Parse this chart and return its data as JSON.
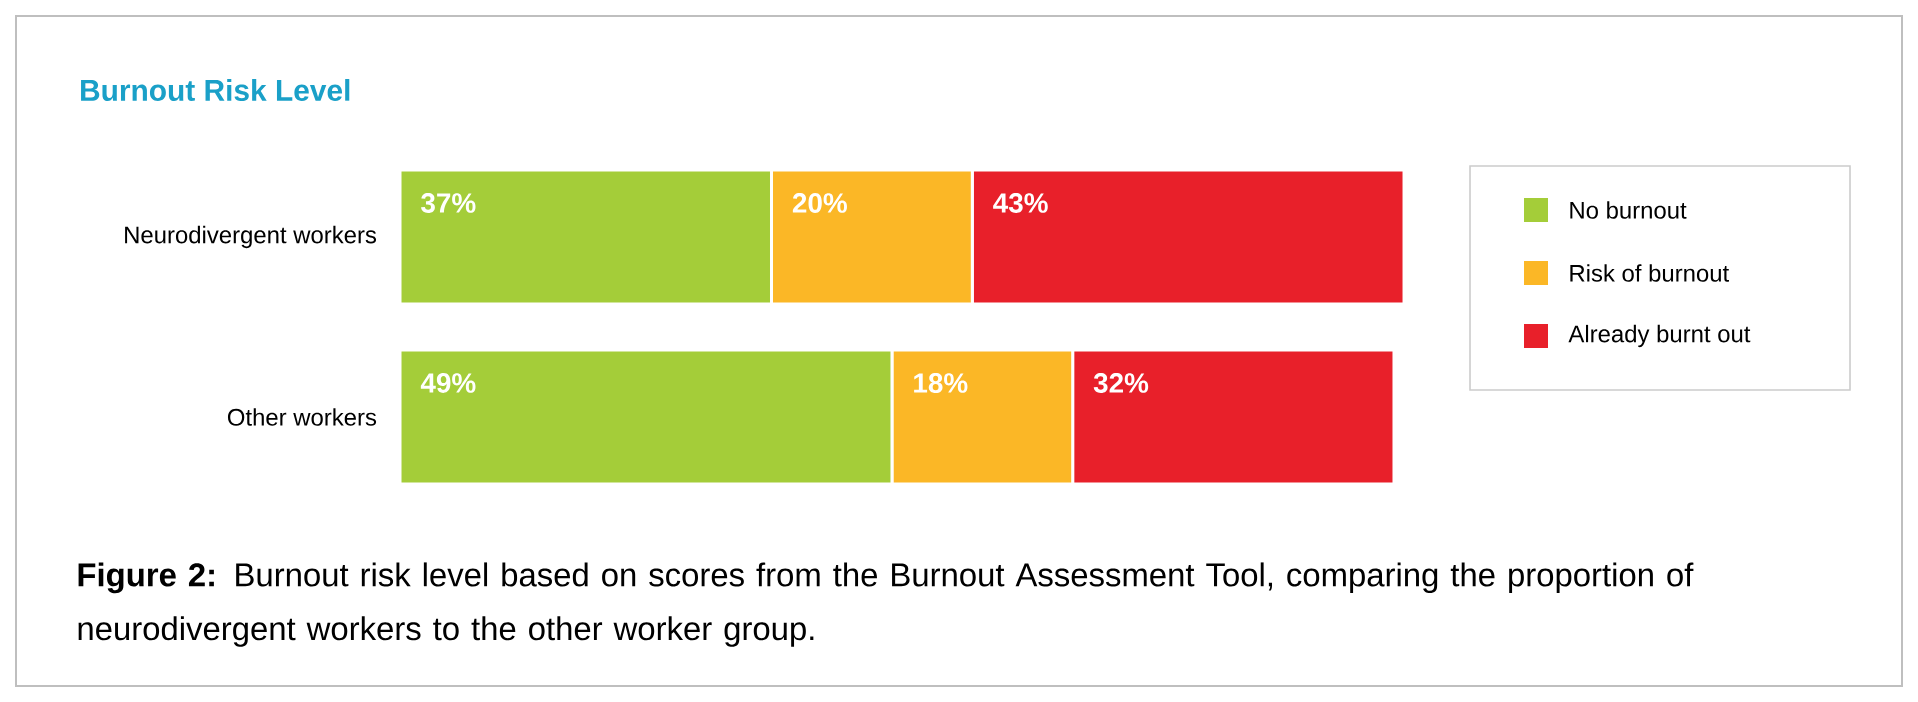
{
  "chart_data": {
    "type": "bar",
    "orientation": "horizontal",
    "stacked": true,
    "title": "Burnout Risk Level",
    "categories": [
      "Neurodivergent workers",
      "Other workers"
    ],
    "series": [
      {
        "name": "No burnout",
        "color": "#a4cd39",
        "values": [
          37,
          49
        ],
        "value_labels": [
          "37%",
          "49%"
        ]
      },
      {
        "name": "Risk of burnout",
        "color": "#fbb726",
        "values": [
          20,
          18
        ],
        "value_labels": [
          "20%",
          "18%"
        ]
      },
      {
        "name": "Already burnt out",
        "color": "#e8202a",
        "values": [
          43,
          32
        ],
        "value_labels": [
          "43%",
          "32%"
        ]
      }
    ],
    "legend": "right",
    "annotations": [
      "**Figure 2:** Burnout risk level based on scores from the Burnout Assessment Tool, comparing the proportion of neurodivergent workers to the other worker group."
    ]
  }
}
